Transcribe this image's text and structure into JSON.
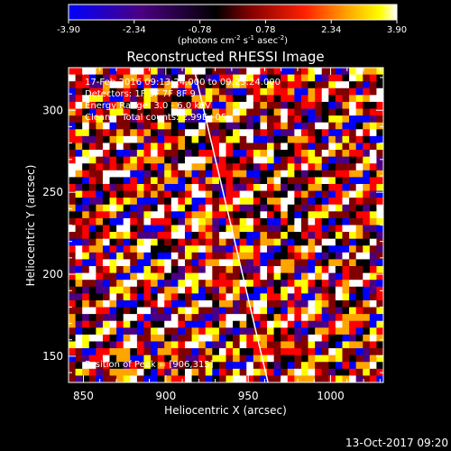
{
  "chart_data": {
    "type": "heatmap",
    "title": "Reconstructed RHESSI Image",
    "xlabel": "Heliocentric X (arcsec)",
    "ylabel": "Heliocentric Y (arcsec)",
    "xlim": [
      841,
      1032
    ],
    "ylim": [
      134,
      326
    ],
    "x_ticks": [
      850,
      900,
      950,
      1000
    ],
    "y_ticks": [
      150,
      200,
      250,
      300
    ],
    "colorbar": {
      "min": -3.9,
      "max": 3.9,
      "tick_labels": [
        "-3.90",
        "-2.34",
        "-0.78",
        "0.78",
        "2.34",
        "3.90"
      ],
      "unit_label": "(photons cm",
      "unit_sup1": "-2",
      "unit_mid1": " s",
      "unit_sup2": "-1",
      "unit_mid2": " asec",
      "unit_sup3": "-2",
      "unit_end": ")",
      "colors": [
        "#0000ff",
        "#4b0082",
        "#000000",
        "#800000",
        "#ff0000",
        "#ffa500",
        "#ffff00",
        "#ffffff"
      ]
    },
    "grid_size": [
      46,
      46
    ],
    "limb_line": {
      "x": [
        917,
        962
      ],
      "y": [
        326,
        134
      ]
    },
    "annotations": [
      "17-Feb-2016 09:13:24.000 to 09:23:24.000",
      "Detectors: 1F 3F 7F 8F 9",
      "Energy Range: 3.0 - 6.0 keV",
      "Clean    Total counts: 2.99E+05"
    ],
    "peak_label": "Position of Peak = [906,315]",
    "footer": "13-Oct-2017 09:20"
  }
}
